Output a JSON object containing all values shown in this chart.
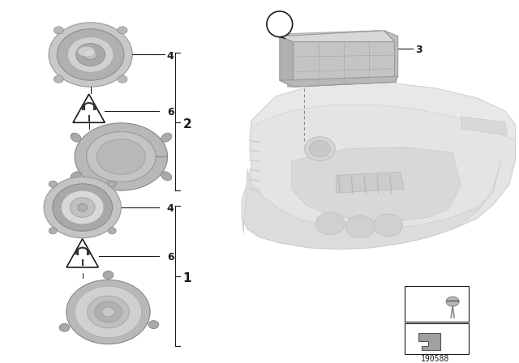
{
  "bg_color": "#ffffff",
  "part_number": "190588",
  "line_color": "#1a1a1a",
  "gray_outer": "#c0c0c0",
  "gray_mid": "#a8a8a8",
  "gray_inner": "#d4d4d4",
  "gray_cone": "#b8b8b8",
  "gray_bracket": "#b4b4b4",
  "gray_dash": "#e0e0e0",
  "gray_mount": "#c8c8c8",
  "gray_speaker_dark": "#9a9a9a"
}
